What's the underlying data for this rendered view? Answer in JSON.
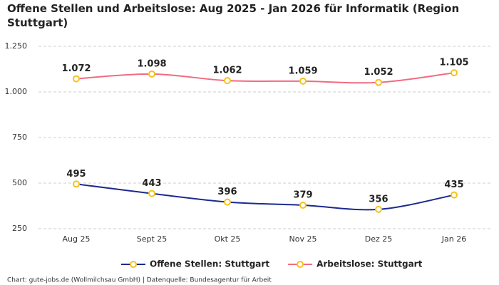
{
  "chart_data": {
    "type": "line",
    "title": "Offene Stellen und Arbeitslose: Aug 2025 - Jan 2026 für Informatik (Region Stuttgart)",
    "categories": [
      "Aug 25",
      "Sept 25",
      "Okt 25",
      "Nov 25",
      "Dez 25",
      "Jan 26"
    ],
    "series": [
      {
        "name": "Offene Stellen: Stuttgart",
        "color": "#1b2a8f",
        "values": [
          495,
          443,
          396,
          379,
          356,
          435
        ]
      },
      {
        "name": "Arbeitslose: Stuttgart",
        "color": "#f26b80",
        "values": [
          1072,
          1098,
          1062,
          1059,
          1052,
          1105
        ],
        "value_labels": [
          "1.072",
          "1.098",
          "1.062",
          "1.059",
          "1.052",
          "1.105"
        ]
      }
    ],
    "marker_color": "#f5c21b",
    "ylim": [
      250,
      1250
    ],
    "yticks": [
      250,
      500,
      750,
      {
        "value": 1000,
        "label": "1.000"
      },
      {
        "value": 1250,
        "label": "1.250"
      }
    ],
    "grid": true,
    "legend": "bottom",
    "source": "Chart: gute-jobs.de (Wollmilchsau GmbH) | Datenquelle: Bundesagentur für Arbeit"
  }
}
